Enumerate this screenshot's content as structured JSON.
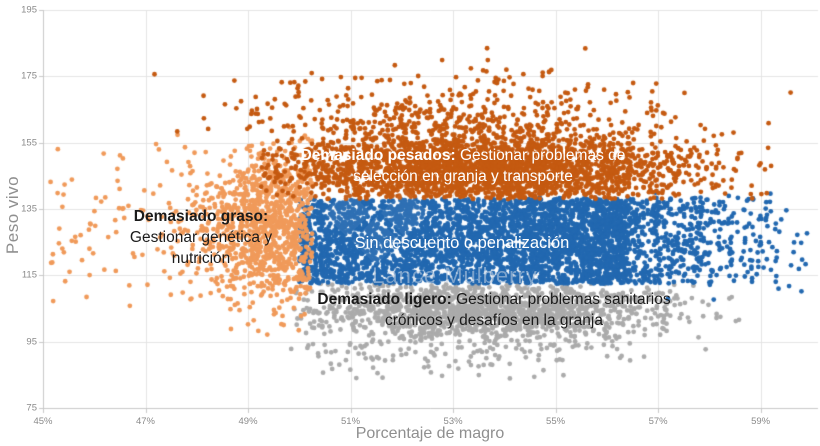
{
  "watermark": {
    "text": "Lance Mulberry"
  },
  "chart_data": {
    "type": "scatter",
    "title": "",
    "xlabel": "Porcentaje de magro",
    "ylabel": "Peso vivo",
    "x_range": [
      45,
      60.12
    ],
    "y_range": [
      75,
      195
    ],
    "x_tick_values": [
      45,
      47,
      49,
      51,
      53,
      55,
      57,
      59
    ],
    "x_tick_labels": [
      "45%",
      "47%",
      "49%",
      "51%",
      "53%",
      "55%",
      "57%",
      "59%"
    ],
    "y_tick_values": [
      195,
      175,
      155,
      135,
      115,
      95,
      75
    ],
    "y_tick_labels": [
      "195",
      "175",
      "155",
      "135",
      "115",
      "95",
      "75"
    ],
    "grid": true,
    "legend": "none",
    "point_radius": 2.4,
    "colors": {
      "heavy_orange": "#c55a11",
      "fat_light_orange": "#f09a5a",
      "ok_blue": "#2268b0",
      "light_gray": "#ababab",
      "grid_line": "#e4e4e4",
      "axis_line": "#c9c9c9",
      "tick_text": "#8a8a8a"
    },
    "regions": [
      {
        "id": "pesados",
        "bold": "Demasiado pesados:",
        "text": " Gestionar problemas de selección en granja y transporte",
        "text_color": "#ffffff",
        "zone": "arriba (pesos altos 137-185, dominio naranja oscuro)"
      },
      {
        "id": "graso",
        "bold": "Demasiado graso:",
        "text": " Gestionar genética y nutrición",
        "text_color": "#1b1b1b",
        "zone": "izquierda (magro 45-50%, dominio naranja claro)"
      },
      {
        "id": "ok",
        "bold": "",
        "text": "Sin descuento o penalización",
        "text_color": "#ffffff",
        "zone": "centro (magro 50-57%, peso 113-138, bloque azul)"
      },
      {
        "id": "ligero",
        "bold": "Demasiado ligero:",
        "text": " Gestionar problemas sanitarios crónicos y desafíos en la granja",
        "text_color": "#1b1b1b",
        "zone": "abajo (pesos 82-112, dominio gris)"
      }
    ],
    "clusters": [
      {
        "name": "ligero-core",
        "color": "light_gray",
        "count": 1500,
        "x": {
          "dist": "gauss",
          "mean": 53.7,
          "sd": 1.85,
          "min": 49.9,
          "max": 58.7
        },
        "y": {
          "dist": "gauss",
          "mean": 104.5,
          "sd": 4.3,
          "min": 96,
          "max": 112.5
        }
      },
      {
        "name": "ligero-sparse",
        "color": "light_gray",
        "count": 170,
        "x": {
          "dist": "gauss",
          "mean": 53.3,
          "sd": 2.0,
          "min": 49.8,
          "max": 58.9
        },
        "y": {
          "dist": "gauss",
          "mean": 94.5,
          "sd": 5.0,
          "min": 81.5,
          "max": 97
        }
      },
      {
        "name": "ok-core",
        "color": "ok_blue",
        "count": 3000,
        "x": {
          "dist": "uniform",
          "min": 50.0,
          "max": 56.4
        },
        "y": {
          "dist": "uniform",
          "min": 112.5,
          "max": 138
        }
      },
      {
        "name": "ok-edge",
        "color": "ok_blue",
        "count": 900,
        "x": {
          "dist": "gauss",
          "mean": 56.2,
          "sd": 1.2,
          "min": 50.0,
          "max": 59.9
        },
        "y": {
          "dist": "uniform",
          "min": 112.5,
          "max": 138.5
        }
      },
      {
        "name": "ok-tail",
        "color": "ok_blue",
        "count": 150,
        "x": {
          "dist": "gauss",
          "mean": 58.2,
          "sd": 1.0,
          "min": 56.5,
          "max": 60.0
        },
        "y": {
          "dist": "gauss",
          "mean": 125,
          "sd": 8,
          "min": 107,
          "max": 142
        }
      },
      {
        "name": "graso-core",
        "color": "fat_light_orange",
        "count": 1050,
        "x": {
          "dist": "gauss",
          "mean": 49.55,
          "sd": 0.8,
          "min": 45.05,
          "max": 50.25
        },
        "y": {
          "dist": "gauss",
          "mean": 130,
          "sd": 11.5,
          "min": 94,
          "max": 160
        }
      },
      {
        "name": "graso-sparse",
        "color": "fat_light_orange",
        "count": 110,
        "x": {
          "dist": "uniform",
          "min": 45.1,
          "max": 48.3
        },
        "y": {
          "dist": "gauss",
          "mean": 132,
          "sd": 14,
          "min": 93,
          "max": 163
        }
      },
      {
        "name": "pesados-core",
        "color": "heavy_orange",
        "count": 2800,
        "x": {
          "dist": "gauss",
          "mean": 53.6,
          "sd": 2.0,
          "min": 49.25,
          "max": 59.3
        },
        "y": {
          "dist": "gauss",
          "mean": 147,
          "sd": 6,
          "min": 138,
          "max": 161
        }
      },
      {
        "name": "pesados-upper",
        "color": "heavy_orange",
        "count": 380,
        "x": {
          "dist": "gauss",
          "mean": 53.0,
          "sd": 2.3,
          "min": 46.2,
          "max": 59.6
        },
        "y": {
          "dist": "gauss",
          "mean": 162,
          "sd": 7,
          "min": 158,
          "max": 185
        }
      }
    ]
  }
}
